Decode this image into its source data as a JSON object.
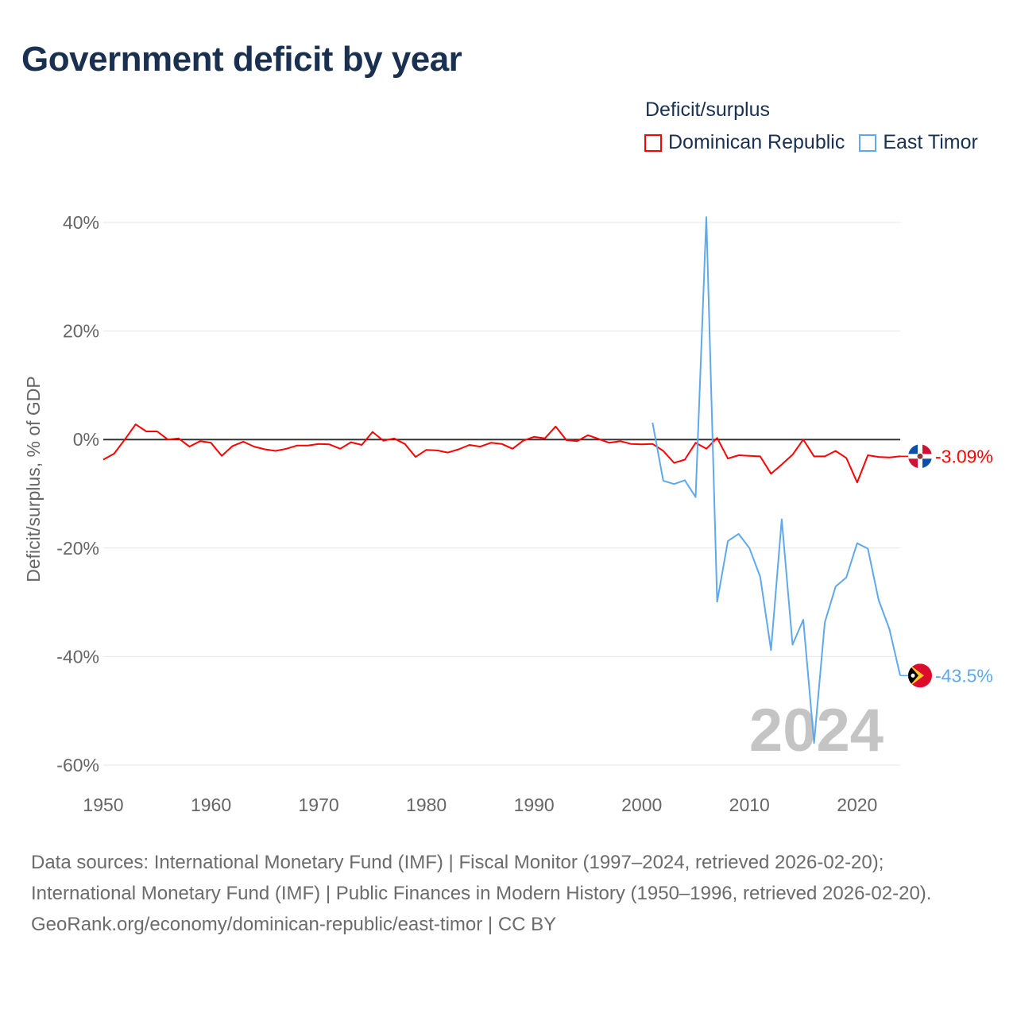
{
  "title": "Government deficit by year",
  "legend": {
    "title": "Deficit/surplus",
    "items": [
      {
        "label": "Dominican Republic",
        "color": "#ff0000"
      },
      {
        "label": "East Timor",
        "color": "#5ea9ec"
      }
    ]
  },
  "chart_data": {
    "type": "line",
    "title": "Government deficit by year",
    "xlabel": "",
    "ylabel": "Deficit/surplus, % of GDP",
    "xlim": [
      1950,
      2024
    ],
    "ylim": [
      -60,
      40
    ],
    "x_ticks": [
      1950,
      1960,
      1970,
      1980,
      1990,
      2000,
      2010,
      2020
    ],
    "x_tick_labels": [
      "1950",
      "1960",
      "1970",
      "1980",
      "1990",
      "2000",
      "2010",
      "2020"
    ],
    "y_ticks": [
      40,
      20,
      0,
      -20,
      -40,
      -60
    ],
    "y_tick_labels": [
      "40%",
      "20%",
      "0%",
      "-20%",
      "-40%",
      "-60%"
    ],
    "grid": true,
    "legend_position": "top-right",
    "watermark_year": "2024",
    "series": [
      {
        "name": "Dominican Republic",
        "color": "#ff0000",
        "end_label": "-3.09%",
        "flag": "dominican-republic",
        "start_year": 1950,
        "values": [
          -3.7,
          -2.6,
          0.0,
          2.8,
          1.5,
          1.5,
          0.0,
          0.2,
          -1.3,
          -0.3,
          -0.6,
          -3.0,
          -1.2,
          -0.4,
          -1.3,
          -1.8,
          -2.1,
          -1.7,
          -1.1,
          -1.1,
          -0.8,
          -0.9,
          -1.7,
          -0.5,
          -1.0,
          1.4,
          -0.2,
          0.2,
          -0.8,
          -3.2,
          -1.9,
          -2.0,
          -2.4,
          -1.8,
          -1.0,
          -1.3,
          -0.6,
          -0.8,
          -1.7,
          -0.2,
          0.5,
          0.2,
          2.4,
          -0.1,
          -0.3,
          0.8,
          0.1,
          -0.6,
          -0.3,
          -0.8,
          -0.9,
          -0.8,
          -2.1,
          -4.3,
          -3.7,
          -0.6,
          -1.7,
          0.3,
          -3.5,
          -2.9,
          -3.0,
          -3.1,
          -6.3,
          -4.6,
          -2.8,
          0.0,
          -3.1,
          -3.1,
          -2.1,
          -3.4,
          -7.9,
          -2.9,
          -3.2,
          -3.3,
          -3.09
        ]
      },
      {
        "name": "East Timor",
        "color": "#5ea9ec",
        "end_label": "-43.5%",
        "flag": "east-timor",
        "start_year": 2001,
        "values": [
          3.1,
          -7.6,
          -8.2,
          -7.5,
          -10.6,
          41.0,
          -29.9,
          -18.7,
          -17.4,
          -20.0,
          -25.3,
          -38.8,
          -14.7,
          -37.8,
          -33.2,
          -55.9,
          -33.7,
          -27.1,
          -25.4,
          -19.1,
          -20.1,
          -29.6,
          -34.9,
          -43.5
        ]
      }
    ]
  },
  "footer": {
    "sources": "Data sources: International Monetary Fund (IMF) | Fiscal Monitor (1997–2024, retrieved 2026-02-20); International Monetary Fund (IMF) | Public Finances in Modern History (1950–1996, retrieved 2026-02-20).",
    "link": "GeoRank.org/economy/dominican-republic/east-timor",
    "license": " | CC BY"
  }
}
